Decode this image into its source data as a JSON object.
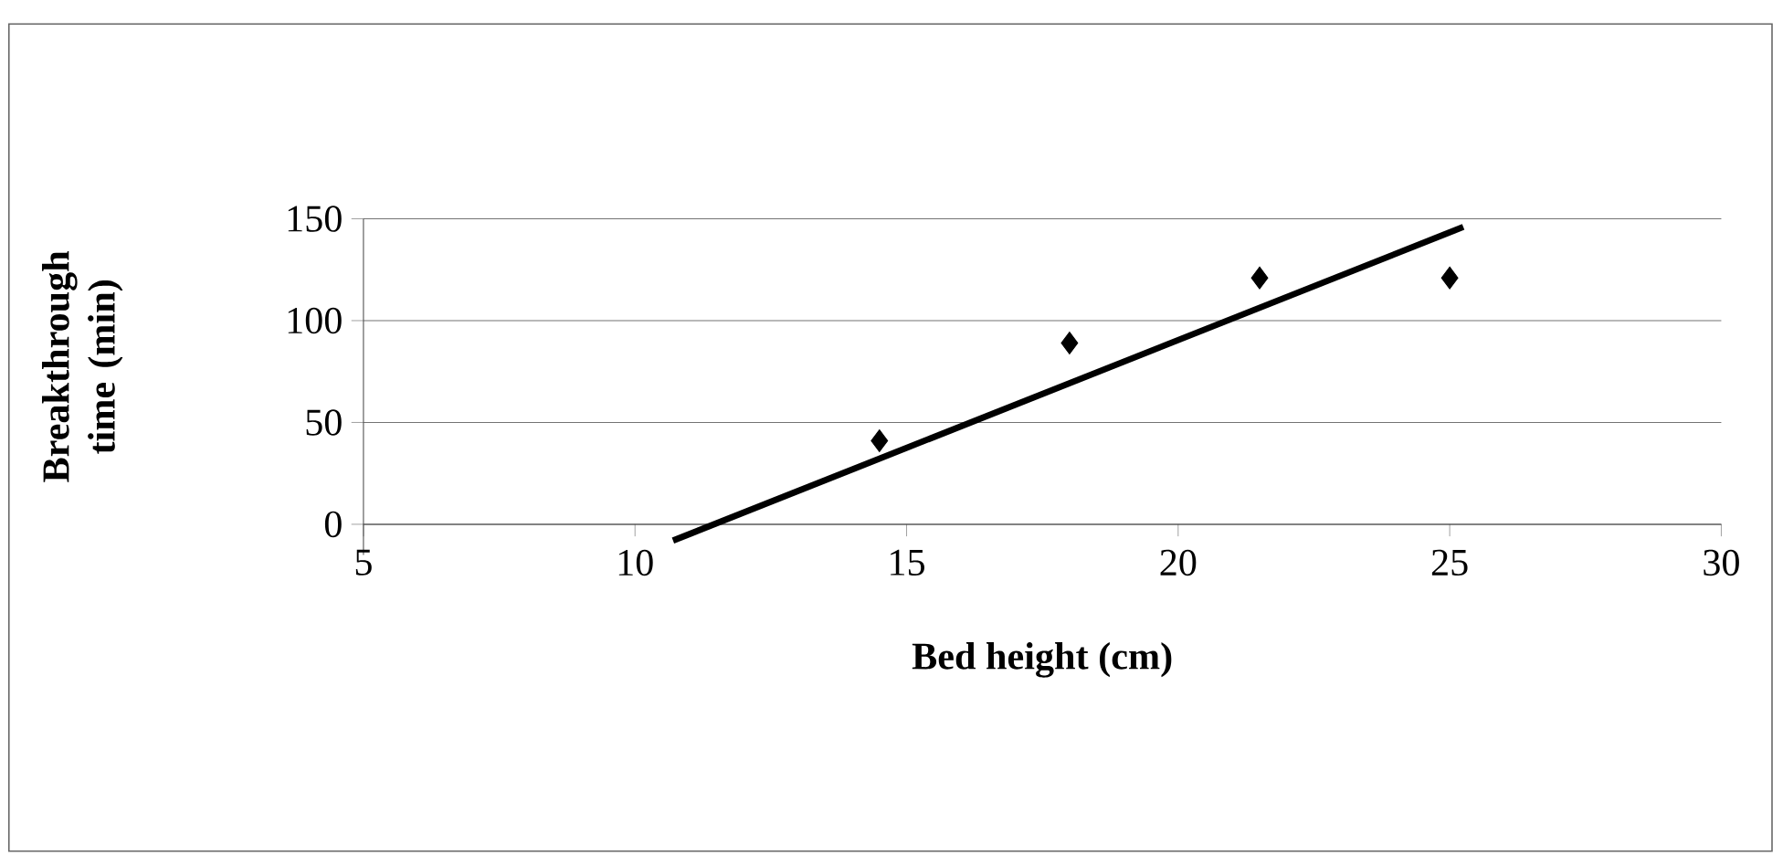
{
  "chart_data": {
    "type": "scatter",
    "xlabel": "Bed height (cm)",
    "ylabel": "Breakthrough time (min)",
    "xlim": [
      5,
      30
    ],
    "xticks": [
      5,
      10,
      15,
      20,
      25,
      30
    ],
    "ylim": [
      -15,
      150
    ],
    "yticks": [
      0,
      50,
      100,
      150
    ],
    "grid": "y",
    "marker": "diamond",
    "series": [
      {
        "color": "#000000",
        "x": [
          14.5,
          18,
          21.5,
          25
        ],
        "values": [
          41,
          89,
          121,
          121
        ]
      },
      {
        "type": "line",
        "color": "#000000",
        "line_style": "solid",
        "marker": "none",
        "x": [
          10.7,
          25.25
        ],
        "values": [
          -8,
          146
        ]
      }
    ]
  }
}
